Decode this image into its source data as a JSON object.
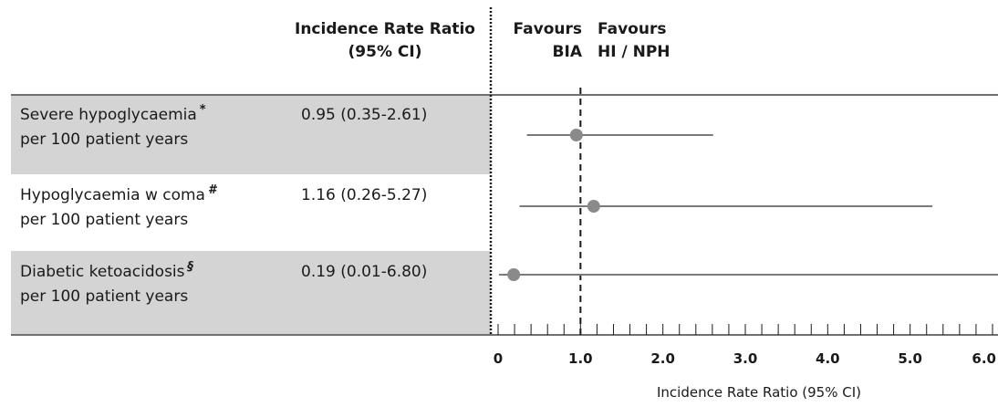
{
  "header": {
    "ratio_line1": "Incidence Rate Ratio",
    "ratio_line2": "(95% CI)",
    "favours_left_line1": "Favours",
    "favours_left_line2": "BIA",
    "favours_right_line1": "Favours",
    "favours_right_line2": "HI / NPH"
  },
  "chart_data": {
    "type": "forest",
    "xlabel": "Incidence Rate Ratio (95% CI)",
    "xlim": [
      -0.1,
      6.1
    ],
    "reference_line": 1.0,
    "tick_labels": [
      "0",
      "1.0",
      "2.0",
      "3.0",
      "4.0",
      "5.0",
      "6.0"
    ],
    "tick_values": [
      0,
      1,
      2,
      3,
      4,
      5,
      6
    ],
    "minor_tick_step": 0.2,
    "rows": [
      {
        "label_line1": "Severe hypoglycaemia",
        "footnote": "*",
        "label_line2": "per 100 patient years",
        "value_text": "0.95 (0.35-2.61)",
        "point": 0.95,
        "ci_low": 0.35,
        "ci_high": 2.61,
        "shaded": true
      },
      {
        "label_line1": "Hypoglycaemia w coma",
        "footnote": "#",
        "label_line2": "per 100 patient years",
        "value_text": "1.16 (0.26-5.27)",
        "point": 1.16,
        "ci_low": 0.26,
        "ci_high": 5.27,
        "shaded": false
      },
      {
        "label_line1": "Diabetic ketoacidosis",
        "footnote": "§",
        "label_line2": "per 100 patient years",
        "value_text": "0.19 (0.01-6.80)",
        "point": 0.19,
        "ci_low": 0.01,
        "ci_high": 6.8,
        "shaded": true
      }
    ],
    "colors": {
      "marker": "#8a8a8a",
      "ci_line": "#7a7a7a",
      "shade": "#d4d4d4"
    }
  }
}
